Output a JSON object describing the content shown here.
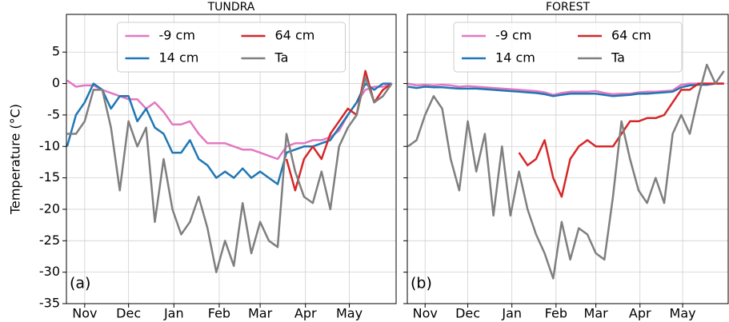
{
  "chart_data": [
    {
      "type": "line",
      "title": "TUNDRA",
      "ylabel": "Temperature (°C)",
      "annotation": "(a)",
      "x": [
        19,
        25,
        31,
        37,
        43,
        49,
        55,
        61,
        67,
        73,
        79,
        85,
        91,
        97,
        103,
        109,
        115,
        121,
        127,
        133,
        139,
        145,
        151,
        157,
        163,
        169,
        175,
        181,
        187,
        193,
        199,
        205,
        211,
        217,
        223,
        229,
        235,
        241
      ],
      "series": [
        {
          "name": "-9 cm",
          "color": "#e377c2",
          "values": [
            0.5,
            -0.5,
            -0.3,
            -0.3,
            -1,
            -1.5,
            -2,
            -2.5,
            -2.5,
            -4,
            -3,
            -4.5,
            -6.5,
            -6.5,
            -6,
            -8,
            -9.5,
            -9.5,
            -9.5,
            -10,
            -10.5,
            -10.5,
            -11,
            -11.5,
            -12,
            -10,
            -9.5,
            -9.5,
            -9,
            -9,
            -8.5,
            -7.5,
            -5,
            -3,
            -1,
            -0.5,
            -0.5,
            0
          ]
        },
        {
          "name": "14 cm",
          "color": "#1f77b4",
          "values": [
            -10,
            -5,
            -3,
            0,
            -1,
            -4,
            -2,
            -2,
            -6,
            -4,
            -7,
            -8,
            -11,
            -11,
            -9,
            -12,
            -13,
            -15,
            -14,
            -15,
            -13.5,
            -15,
            -14,
            -15,
            -16,
            -11,
            -10.5,
            -10,
            -10,
            -9.5,
            -9,
            -7,
            -5,
            -3,
            0,
            -1,
            0,
            0
          ]
        },
        {
          "name": "64 cm",
          "color": "#d62728",
          "values": [
            null,
            null,
            null,
            null,
            null,
            null,
            null,
            null,
            null,
            null,
            null,
            null,
            null,
            null,
            null,
            null,
            null,
            null,
            null,
            null,
            null,
            null,
            null,
            null,
            null,
            -12,
            -17,
            -12,
            -10,
            -12,
            -8,
            -6,
            -4,
            -5,
            2,
            -3,
            -1,
            0
          ]
        },
        {
          "name": "Ta",
          "color": "#7f7f7f",
          "values": [
            -8,
            -8,
            -6,
            -1,
            -1,
            -7,
            -17,
            -6,
            -10,
            -7,
            -22,
            -12,
            -20,
            -24,
            -22,
            -18,
            -23,
            -30,
            -25,
            -29,
            -19,
            -27,
            -22,
            -25,
            -26,
            -8,
            -14,
            -18,
            -19,
            -14,
            -20,
            -10,
            -7,
            -5,
            1,
            -3,
            -2,
            0
          ]
        }
      ],
      "xlim": [
        18.5,
        244
      ],
      "xticks": [
        {
          "value": 31,
          "label": "Nov"
        },
        {
          "value": 61,
          "label": "Dec"
        },
        {
          "value": 92,
          "label": "Jan"
        },
        {
          "value": 123,
          "label": "Feb"
        },
        {
          "value": 151,
          "label": "Mar"
        },
        {
          "value": 182,
          "label": "Apr"
        },
        {
          "value": 212,
          "label": "May"
        }
      ],
      "ylim": [
        -35,
        11
      ],
      "yticks": [
        -35,
        -30,
        -25,
        -20,
        -15,
        -10,
        -5,
        0,
        5
      ],
      "grid": true,
      "legend": "upper center",
      "show_ytick_labels": true
    },
    {
      "type": "line",
      "title": "FOREST",
      "annotation": "(b)",
      "x": [
        19,
        25,
        31,
        37,
        43,
        49,
        55,
        61,
        67,
        73,
        79,
        85,
        91,
        97,
        103,
        109,
        115,
        121,
        127,
        133,
        139,
        145,
        151,
        157,
        163,
        169,
        175,
        181,
        187,
        193,
        199,
        205,
        211,
        217,
        223,
        229,
        235,
        241
      ],
      "series": [
        {
          "name": "-9 cm",
          "color": "#e377c2",
          "values": [
            0,
            -0.3,
            -0.2,
            -0.3,
            -0.2,
            -0.3,
            -0.5,
            -0.4,
            -0.5,
            -0.6,
            -0.7,
            -0.8,
            -0.9,
            -1,
            -1.1,
            -1.2,
            -1.4,
            -1.8,
            -1.5,
            -1.3,
            -1.3,
            -1.3,
            -1.2,
            -1.5,
            -1.7,
            -1.6,
            -1.6,
            -1.4,
            -1.3,
            -1.3,
            -1.2,
            -1.1,
            -0.2,
            0,
            0,
            0,
            0,
            0
          ]
        },
        {
          "name": "14 cm",
          "color": "#1f77b4",
          "values": [
            -0.5,
            -0.7,
            -0.5,
            -0.6,
            -0.6,
            -0.7,
            -0.8,
            -0.8,
            -0.8,
            -0.9,
            -1,
            -1.1,
            -1.2,
            -1.3,
            -1.4,
            -1.5,
            -1.7,
            -2,
            -1.8,
            -1.6,
            -1.6,
            -1.6,
            -1.6,
            -1.8,
            -2,
            -1.9,
            -1.8,
            -1.6,
            -1.6,
            -1.5,
            -1.4,
            -1.3,
            -0.6,
            -0.3,
            -0.2,
            -0.2,
            0,
            0
          ]
        },
        {
          "name": "64 cm",
          "color": "#d62728",
          "values": [
            null,
            null,
            null,
            null,
            null,
            null,
            null,
            null,
            null,
            null,
            null,
            null,
            null,
            -11,
            -13,
            -12,
            -9,
            -15,
            -18,
            -12,
            -10,
            -9,
            -10,
            -10,
            -10,
            -8,
            -6,
            -6,
            -5.5,
            -5.5,
            -5,
            -3,
            -1,
            -1,
            0,
            0,
            0,
            0
          ]
        },
        {
          "name": "Ta",
          "color": "#7f7f7f",
          "values": [
            -10,
            -9,
            -5,
            -2,
            -4,
            -12,
            -17,
            -6,
            -14,
            -8,
            -21,
            -10,
            -21,
            -14,
            -20,
            -24,
            -27,
            -31,
            -22,
            -28,
            -23,
            -24,
            -27,
            -28,
            -18,
            -6,
            -12,
            -17,
            -19,
            -15,
            -19,
            -8,
            -5,
            -8,
            -2,
            3,
            0,
            2
          ]
        }
      ],
      "xlim": [
        18.5,
        244
      ],
      "xticks": [
        {
          "value": 31,
          "label": "Nov"
        },
        {
          "value": 61,
          "label": "Dec"
        },
        {
          "value": 92,
          "label": "Jan"
        },
        {
          "value": 123,
          "label": "Feb"
        },
        {
          "value": 151,
          "label": "Mar"
        },
        {
          "value": 182,
          "label": "Apr"
        },
        {
          "value": 212,
          "label": "May"
        }
      ],
      "ylim": [
        -35,
        11
      ],
      "yticks": [
        -35,
        -30,
        -25,
        -20,
        -15,
        -10,
        -5,
        0,
        5
      ],
      "grid": true,
      "legend": "upper center",
      "show_ytick_labels": false
    }
  ]
}
